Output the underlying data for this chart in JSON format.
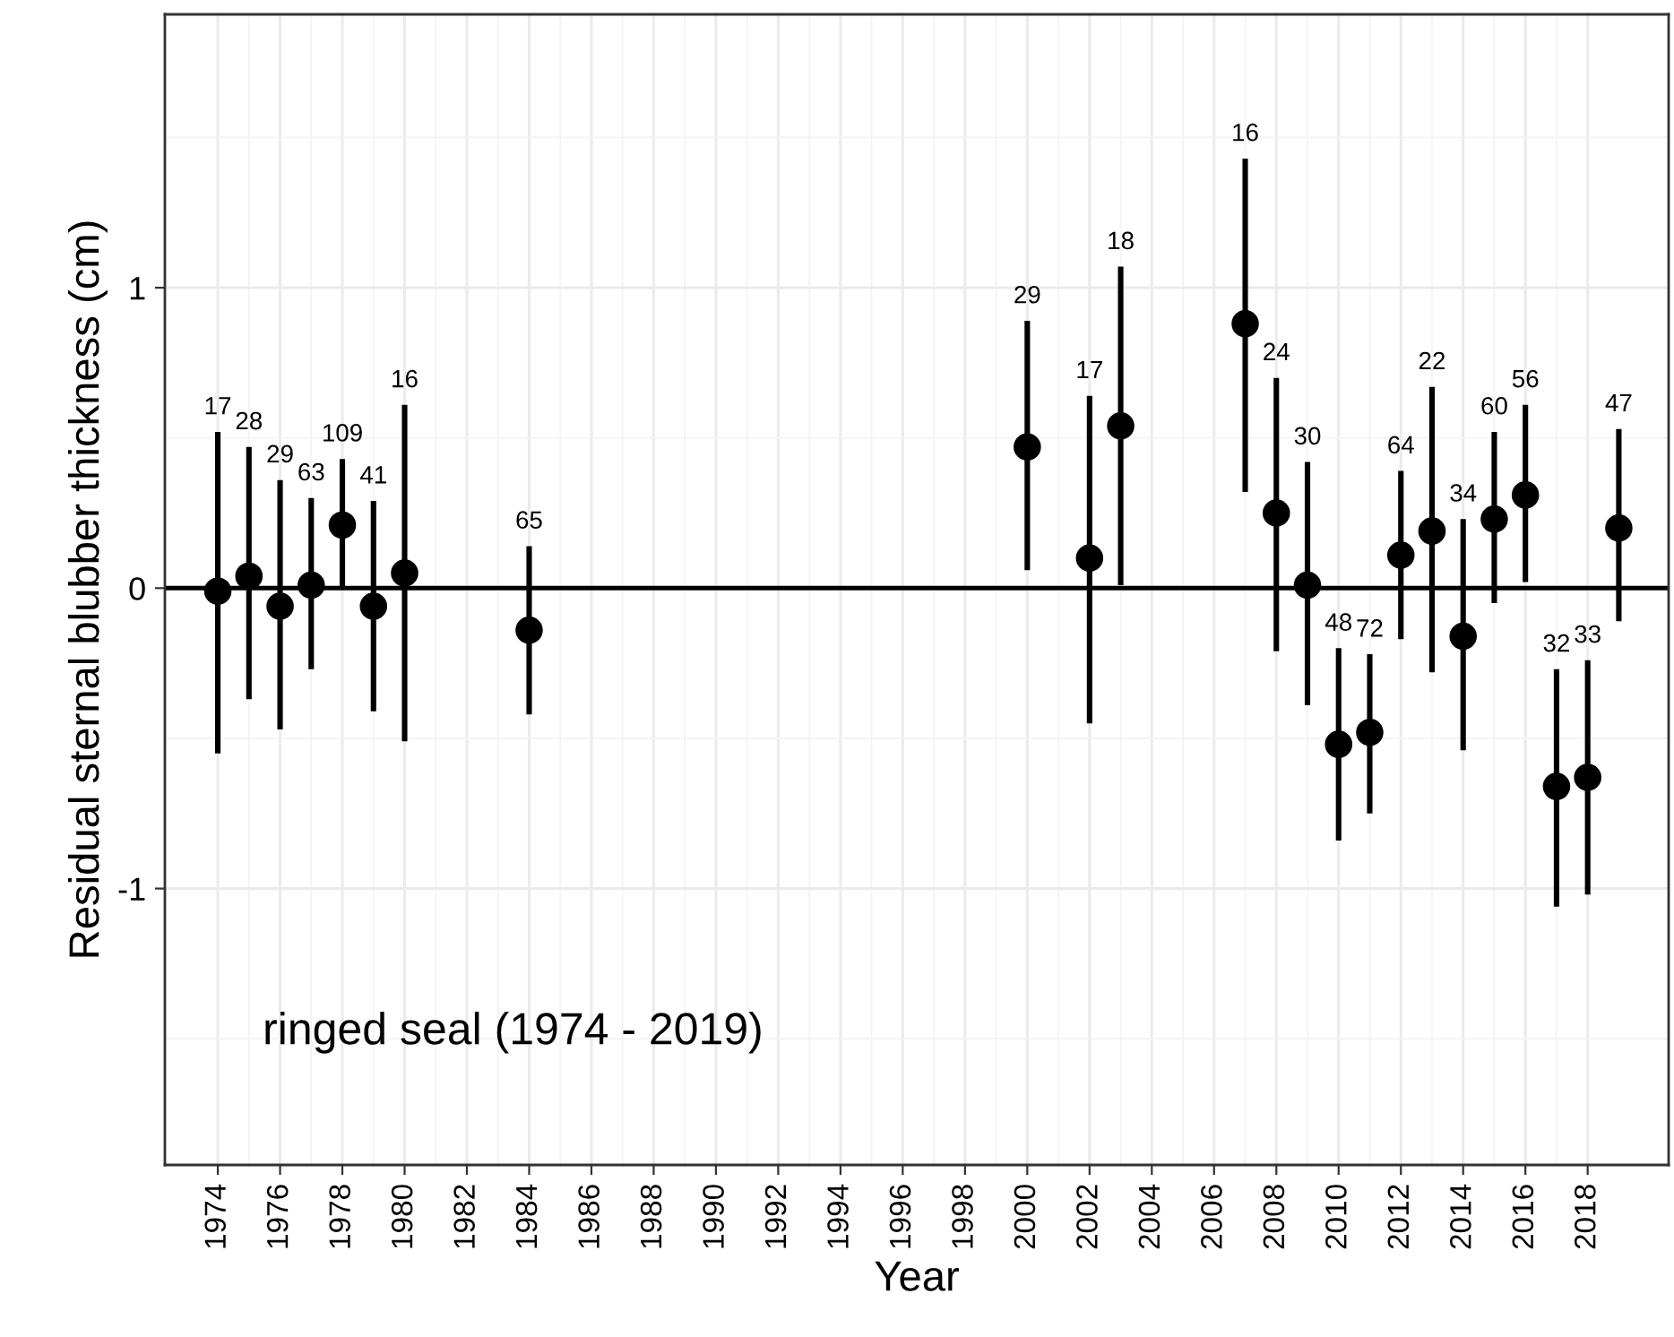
{
  "chart_data": {
    "type": "scatter",
    "xlabel": "Year",
    "ylabel": "Residual sternal blubber thickness (cm)",
    "x": [
      1974,
      1975,
      1976,
      1977,
      1978,
      1979,
      1980,
      1984,
      2000,
      2002,
      2003,
      2007,
      2008,
      2009,
      2010,
      2011,
      2012,
      2013,
      2014,
      2015,
      2016,
      2017,
      2018,
      2019
    ],
    "values": [
      -0.01,
      0.04,
      -0.06,
      0.01,
      0.21,
      -0.06,
      0.05,
      -0.14,
      0.47,
      0.1,
      0.54,
      0.88,
      0.25,
      0.01,
      -0.52,
      -0.48,
      0.11,
      0.19,
      -0.16,
      0.23,
      0.31,
      -0.66,
      -0.63,
      0.2
    ],
    "errors": [
      [
        -0.55,
        0.52
      ],
      [
        -0.37,
        0.47
      ],
      [
        -0.47,
        0.36
      ],
      [
        -0.27,
        0.3
      ],
      [
        0.0,
        0.43
      ],
      [
        -0.41,
        0.29
      ],
      [
        -0.51,
        0.61
      ],
      [
        -0.42,
        0.14
      ],
      [
        0.06,
        0.89
      ],
      [
        -0.45,
        0.64
      ],
      [
        0.01,
        1.07
      ],
      [
        0.32,
        1.43
      ],
      [
        -0.21,
        0.7
      ],
      [
        -0.39,
        0.42
      ],
      [
        -0.84,
        -0.2
      ],
      [
        -0.75,
        -0.22
      ],
      [
        -0.17,
        0.39
      ],
      [
        -0.28,
        0.67
      ],
      [
        -0.54,
        0.23
      ],
      [
        -0.05,
        0.52
      ],
      [
        0.02,
        0.61
      ],
      [
        -1.06,
        -0.27
      ],
      [
        -1.02,
        -0.24
      ],
      [
        -0.11,
        0.53
      ]
    ],
    "color": "#000000",
    "marker": "circle",
    "xlim": [
      1972.3,
      2020.6
    ],
    "xticks": [
      1974,
      1976,
      1978,
      1980,
      1982,
      1984,
      1986,
      1988,
      1990,
      1992,
      1994,
      1996,
      1998,
      2000,
      2002,
      2004,
      2006,
      2008,
      2010,
      2012,
      2014,
      2016,
      2018
    ],
    "ylim": [
      -1.92,
      1.91
    ],
    "yticks": [
      -1,
      0,
      1
    ],
    "ref_lines": [
      {
        "axis": "y",
        "value": 0,
        "color": "#000000"
      }
    ],
    "annotations": [
      "ringed seal (1974 - 2019)",
      {
        "text": "17",
        "x": 1974,
        "y": 0.52
      },
      {
        "text": "28",
        "x": 1975,
        "y": 0.47
      },
      {
        "text": "29",
        "x": 1976,
        "y": 0.36
      },
      {
        "text": "63",
        "x": 1977,
        "y": 0.3
      },
      {
        "text": "109",
        "x": 1978,
        "y": 0.43
      },
      {
        "text": "41",
        "x": 1979,
        "y": 0.29
      },
      {
        "text": "16",
        "x": 1980,
        "y": 0.61
      },
      {
        "text": "65",
        "x": 1984,
        "y": 0.14
      },
      {
        "text": "29",
        "x": 2000,
        "y": 0.89
      },
      {
        "text": "17",
        "x": 2002,
        "y": 0.64
      },
      {
        "text": "18",
        "x": 2003,
        "y": 1.07
      },
      {
        "text": "16",
        "x": 2007,
        "y": 1.43
      },
      {
        "text": "24",
        "x": 2008,
        "y": 0.7
      },
      {
        "text": "30",
        "x": 2009,
        "y": 0.42
      },
      {
        "text": "48",
        "x": 2010,
        "y": -0.2
      },
      {
        "text": "72",
        "x": 2011,
        "y": -0.22
      },
      {
        "text": "64",
        "x": 2012,
        "y": 0.39
      },
      {
        "text": "22",
        "x": 2013,
        "y": 0.67
      },
      {
        "text": "34",
        "x": 2014,
        "y": 0.23
      },
      {
        "text": "60",
        "x": 2015,
        "y": 0.52
      },
      {
        "text": "56",
        "x": 2016,
        "y": 0.61
      },
      {
        "text": "32",
        "x": 2017,
        "y": -0.27
      },
      {
        "text": "33",
        "x": 2018,
        "y": -0.24
      },
      {
        "text": "47",
        "x": 2019,
        "y": 0.53
      }
    ],
    "grid": true
  }
}
